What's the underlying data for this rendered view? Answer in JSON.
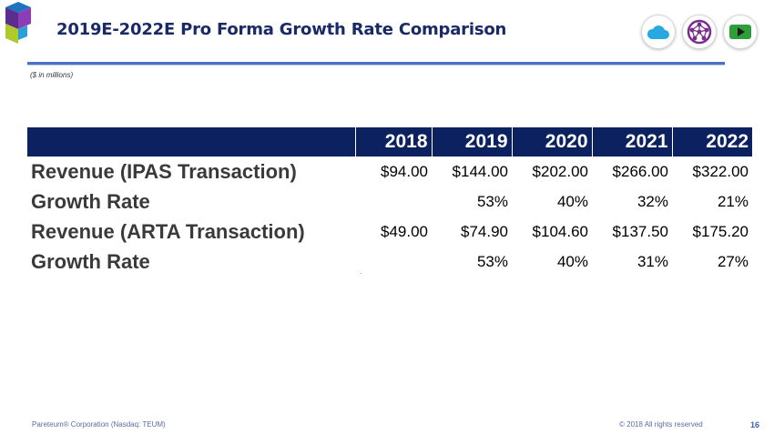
{
  "header": {
    "title": "2019E-2022E Pro Forma Growth Rate Comparison",
    "units_note": "($ in millions)",
    "logo_icon": "pareteum-logo-icon",
    "badges": [
      "cloud-icon",
      "network-globe-icon",
      "play-icon"
    ]
  },
  "table": {
    "columns": [
      "2018",
      "2019",
      "2020",
      "2021",
      "2022"
    ],
    "rows": [
      {
        "label": "Revenue (IPAS Transaction)",
        "values": [
          "$94.00",
          "$144.00",
          "$202.00",
          "$266.00",
          "$322.00"
        ]
      },
      {
        "label": "Growth Rate",
        "values": [
          "",
          "53%",
          "40%",
          "32%",
          "21%"
        ]
      },
      {
        "label": "Revenue (ARTA Transaction)",
        "values": [
          "$49.00",
          "$74.90",
          "$104.60",
          "$137.50",
          "$175.20"
        ]
      },
      {
        "label": "Growth Rate",
        "values": [
          "",
          "53%",
          "40%",
          "31%",
          "27%"
        ]
      }
    ]
  },
  "footer": {
    "company": "Pareteum® Corporation (Nasdaq: TEUM)",
    "copyright": "© 2018 All rights reserved",
    "page": "16"
  },
  "colors": {
    "title": "#1a2a66",
    "table_header": "#0b2160",
    "rule": "#4a72c4",
    "badge_cloud": "#27a8e0",
    "badge_globe": "#7b2d8e",
    "badge_play": "#2e9e3a"
  }
}
